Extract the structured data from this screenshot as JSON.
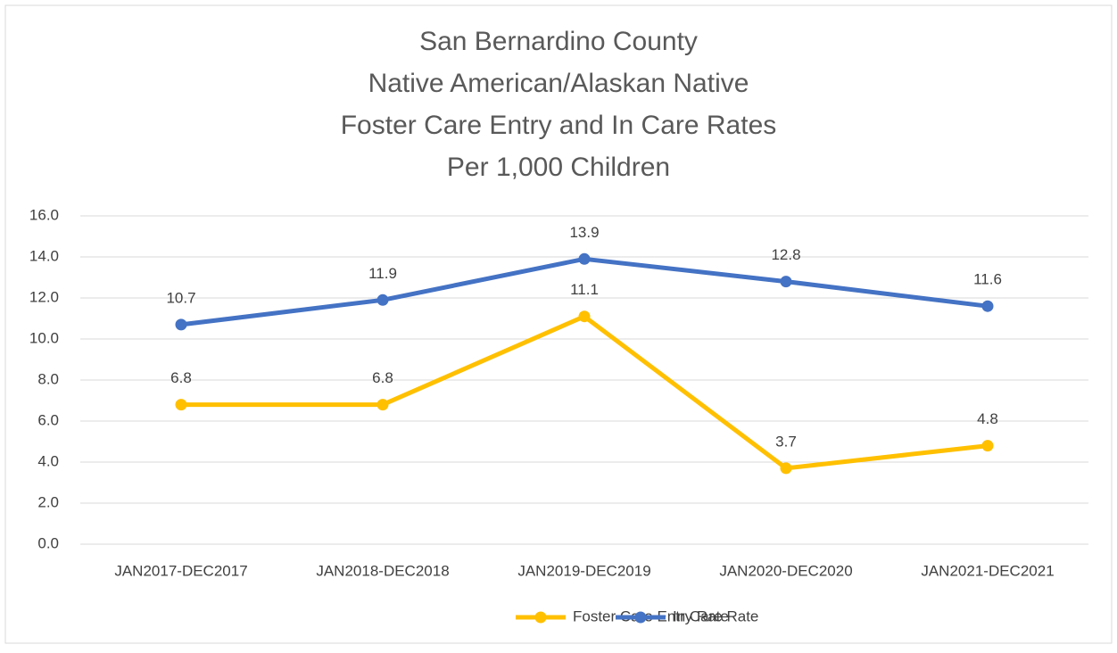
{
  "chart_data": {
    "type": "line",
    "title": [
      "San Bernardino County",
      "Native American/Alaskan Native",
      "Foster Care Entry and In Care Rates",
      "Per 1,000 Children"
    ],
    "categories": [
      "JAN2017-DEC2017",
      "JAN2018-DEC2018",
      "JAN2019-DEC2019",
      "JAN2020-DEC2020",
      "JAN2021-DEC2021"
    ],
    "series": [
      {
        "name": "Foster Care Entry Rate",
        "color": "#FFC000",
        "values": [
          6.8,
          6.8,
          11.1,
          3.7,
          4.8
        ]
      },
      {
        "name": "In Care Rate",
        "color": "#4472C4",
        "values": [
          10.7,
          11.9,
          13.9,
          12.8,
          11.6
        ]
      }
    ],
    "ylim": [
      0,
      16
    ],
    "yticks": [
      {
        "value": 0,
        "label": "0.0"
      },
      {
        "value": 2,
        "label": "2.0"
      },
      {
        "value": 4,
        "label": "4.0"
      },
      {
        "value": 6,
        "label": "6.0"
      },
      {
        "value": 8,
        "label": "8.0"
      },
      {
        "value": 10,
        "label": "10.0"
      },
      {
        "value": 12,
        "label": "12.0"
      },
      {
        "value": 14,
        "label": "14.0"
      },
      {
        "value": 16,
        "label": "16.0"
      }
    ],
    "grid": true,
    "legend": "bottom"
  }
}
